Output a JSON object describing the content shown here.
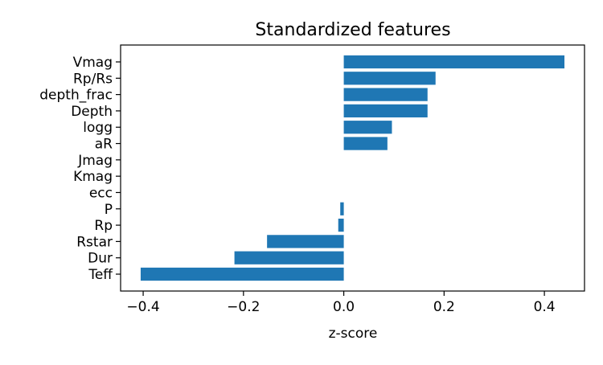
{
  "chart_data": {
    "type": "bar",
    "orientation": "horizontal",
    "title": "Standardized features",
    "xlabel": "z-score",
    "ylabel": "",
    "xlim": [
      -0.445,
      0.48
    ],
    "x_ticks": [
      -0.4,
      -0.2,
      0.0,
      0.2,
      0.4
    ],
    "x_tick_labels": [
      "−0.4",
      "−0.2",
      "0.0",
      "0.2",
      "0.4"
    ],
    "grid": false,
    "bar_color": "#1f77b4",
    "categories": [
      "Teff",
      "Dur",
      "Rstar",
      "Rp",
      "P",
      "ecc",
      "Kmag",
      "Jmag",
      "aR",
      "logg",
      "Depth",
      "depth_frac",
      "Rp/Rs",
      "Vmag"
    ],
    "values": [
      -0.405,
      -0.218,
      -0.153,
      -0.011,
      -0.007,
      0.0,
      0.0,
      0.0,
      0.087,
      0.096,
      0.167,
      0.167,
      0.183,
      0.44
    ]
  }
}
